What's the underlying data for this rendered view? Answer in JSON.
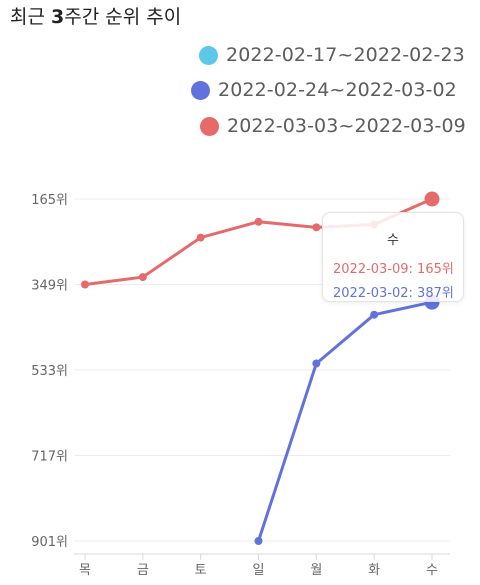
{
  "chart_data": {
    "type": "line",
    "title": "최근 3주간 순위 추이",
    "title_parts": [
      "최근 ",
      "3",
      "주간 순위 추이"
    ],
    "categories": [
      "목",
      "금",
      "토",
      "일",
      "월",
      "화",
      "수"
    ],
    "yticks": [
      "165위",
      "349위",
      "533위",
      "717위",
      "901위"
    ],
    "ylim": [
      165,
      901
    ],
    "y_reversed": true,
    "legend_position": "top-right",
    "series": [
      {
        "name": "2022-02-17~2022-02-23",
        "color": "#5bc8e8",
        "values": [
          null,
          null,
          null,
          null,
          null,
          null,
          null
        ]
      },
      {
        "name": "2022-02-24~2022-03-02",
        "color": "#6272dd",
        "values": [
          null,
          null,
          null,
          901,
          519,
          414,
          387
        ]
      },
      {
        "name": "2022-03-03~2022-03-09",
        "color": "#e66a6a",
        "values": [
          349,
          333,
          248,
          214,
          226,
          220,
          165
        ]
      }
    ],
    "tooltip": {
      "title": "수",
      "lines": [
        {
          "text": "2022-03-09: 165위",
          "color": "#e66a6a"
        },
        {
          "text": "2022-03-02: 387위",
          "color": "#6272dd"
        }
      ]
    }
  }
}
